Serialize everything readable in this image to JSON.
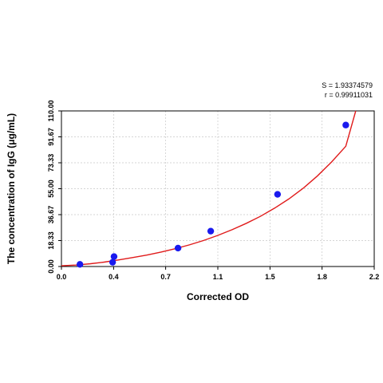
{
  "chart_data": {
    "type": "scatter",
    "title": "",
    "xlabel": "Corrected OD",
    "ylabel": "The concentration of IgG (μg/mL)",
    "xlim": [
      0,
      2.2
    ],
    "ylim": [
      0,
      110
    ],
    "x_ticks": [
      "0.0",
      "0.4",
      "0.7",
      "1.1",
      "1.5",
      "1.8",
      "2.2"
    ],
    "x_tick_values": [
      0,
      0.367,
      0.733,
      1.1,
      1.467,
      1.833,
      2.2
    ],
    "y_ticks": [
      "0.00",
      "18.33",
      "36.67",
      "55.00",
      "73.33",
      "91.67",
      "110.00"
    ],
    "y_tick_values": [
      0,
      18.33,
      36.67,
      55,
      73.33,
      91.67,
      110
    ],
    "grid": true,
    "points": [
      {
        "x": 0.13,
        "y": 1.5
      },
      {
        "x": 0.36,
        "y": 3.0
      },
      {
        "x": 0.37,
        "y": 7.0
      },
      {
        "x": 0.82,
        "y": 13.0
      },
      {
        "x": 1.05,
        "y": 25.0
      },
      {
        "x": 1.52,
        "y": 51.0
      },
      {
        "x": 2.0,
        "y": 100.0
      }
    ],
    "fit_curve": {
      "x": [
        0.0,
        0.1,
        0.2,
        0.3,
        0.4,
        0.5,
        0.6,
        0.7,
        0.8,
        0.9,
        1.0,
        1.1,
        1.2,
        1.3,
        1.4,
        1.5,
        1.6,
        1.7,
        1.8,
        1.9,
        2.0,
        2.07
      ],
      "y": [
        0.5,
        1.0,
        1.9,
        3.1,
        4.6,
        6.3,
        8.1,
        10.2,
        12.6,
        15.3,
        18.4,
        22.0,
        26.0,
        30.5,
        35.5,
        41.3,
        47.8,
        55.3,
        64.0,
        73.9,
        85.0,
        110.0
      ]
    },
    "stats": {
      "s": "S = 1.93374579",
      "r": "r = 0.99911031"
    },
    "colors": {
      "points": "#1a1aee",
      "curve": "#e01b1b",
      "grid": "#c8c8c8"
    }
  }
}
